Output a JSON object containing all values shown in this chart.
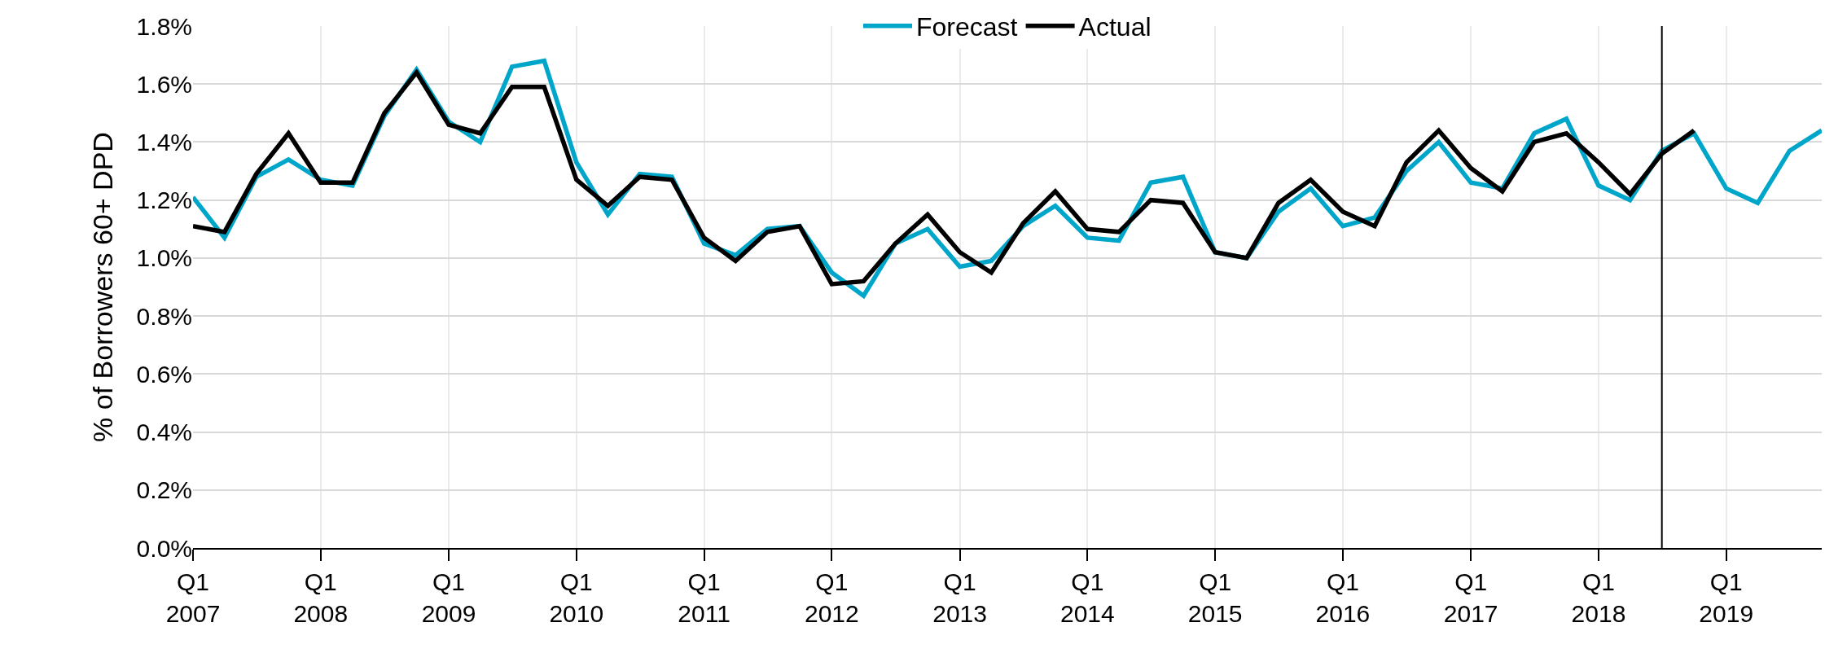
{
  "chart_data": {
    "type": "line",
    "ylabel": "% of Borrowers 60+ DPD",
    "x": [
      "2007-01",
      "2007-04",
      "2007-07",
      "2007-10",
      "2008-01",
      "2008-04",
      "2008-07",
      "2008-10",
      "2009-01",
      "2009-04",
      "2009-07",
      "2009-10",
      "2010-01",
      "2010-04",
      "2010-07",
      "2010-10",
      "2011-01",
      "2011-04",
      "2011-07",
      "2011-10",
      "2012-01",
      "2012-04",
      "2012-07",
      "2012-10",
      "2013-01",
      "2013-04",
      "2013-07",
      "2013-10",
      "2014-01",
      "2014-04",
      "2014-07",
      "2014-10",
      "2015-01",
      "2015-04",
      "2015-07",
      "2015-10",
      "2016-01",
      "2016-04",
      "2016-07",
      "2016-10",
      "2017-01",
      "2017-04",
      "2017-07",
      "2017-10",
      "2018-01",
      "2018-04",
      "2018-07",
      "2018-10",
      "2019-01",
      "2019-04",
      "2019-07",
      "2019-10"
    ],
    "series": [
      {
        "name": "Forecast",
        "color": "#00a6ca",
        "values": [
          1.21,
          1.07,
          1.28,
          1.34,
          1.27,
          1.25,
          1.49,
          1.65,
          1.47,
          1.4,
          1.66,
          1.68,
          1.33,
          1.15,
          1.29,
          1.28,
          1.05,
          1.01,
          1.1,
          1.11,
          0.95,
          0.87,
          1.05,
          1.1,
          0.97,
          0.99,
          1.11,
          1.18,
          1.07,
          1.06,
          1.26,
          1.28,
          1.02,
          1.0,
          1.16,
          1.24,
          1.11,
          1.14,
          1.3,
          1.4,
          1.26,
          1.24,
          1.43,
          1.48,
          1.25,
          1.2,
          1.37,
          1.43,
          1.24,
          1.19,
          1.37,
          1.44
        ]
      },
      {
        "name": "Actual",
        "color": "#000000",
        "values": [
          1.11,
          1.09,
          1.29,
          1.43,
          1.26,
          1.26,
          1.5,
          1.64,
          1.46,
          1.43,
          1.59,
          1.59,
          1.27,
          1.18,
          1.28,
          1.27,
          1.07,
          0.99,
          1.09,
          1.11,
          0.91,
          0.92,
          1.05,
          1.15,
          1.02,
          0.95,
          1.12,
          1.23,
          1.1,
          1.09,
          1.2,
          1.19,
          1.02,
          1.0,
          1.19,
          1.27,
          1.16,
          1.11,
          1.33,
          1.44,
          1.31,
          1.23,
          1.4,
          1.43,
          1.33,
          1.22,
          1.36,
          1.44,
          null,
          null,
          null,
          null
        ]
      }
    ],
    "xlim": [
      "2007-01",
      "2019-10"
    ],
    "xticks": [
      {
        "value": "2007-01",
        "label": "Q1\n2007"
      },
      {
        "value": "2008-01",
        "label": "Q1\n2008"
      },
      {
        "value": "2009-01",
        "label": "Q1\n2009"
      },
      {
        "value": "2010-01",
        "label": "Q1\n2010"
      },
      {
        "value": "2011-01",
        "label": "Q1\n2011"
      },
      {
        "value": "2012-01",
        "label": "Q1\n2012"
      },
      {
        "value": "2013-01",
        "label": "Q1\n2013"
      },
      {
        "value": "2014-01",
        "label": "Q1\n2014"
      },
      {
        "value": "2015-01",
        "label": "Q1\n2015"
      },
      {
        "value": "2016-01",
        "label": "Q1\n2016"
      },
      {
        "value": "2017-01",
        "label": "Q1\n2017"
      },
      {
        "value": "2018-01",
        "label": "Q1\n2018"
      },
      {
        "value": "2019-01",
        "label": "Q1\n2019"
      }
    ],
    "ylim": [
      0,
      1.8
    ],
    "yticks": [
      {
        "value": 0,
        "label": "0.0%"
      },
      {
        "value": 0.2,
        "label": "0.2%"
      },
      {
        "value": 0.4,
        "label": "0.4%"
      },
      {
        "value": 0.6,
        "label": "0.6%"
      },
      {
        "value": 0.8,
        "label": "0.8%"
      },
      {
        "value": 1.0,
        "label": "1.0%"
      },
      {
        "value": 1.2,
        "label": "1.2%"
      },
      {
        "value": 1.4,
        "label": "1.4%"
      },
      {
        "value": 1.6,
        "label": "1.6%"
      },
      {
        "value": 1.8,
        "label": "1.8%"
      }
    ],
    "ref_lines": [
      {
        "axis": "x",
        "value": "2018-07",
        "color": "#000000",
        "line_style": "solid"
      }
    ],
    "grid": true,
    "legend": "top",
    "marker": "none",
    "line_style": "solid"
  }
}
